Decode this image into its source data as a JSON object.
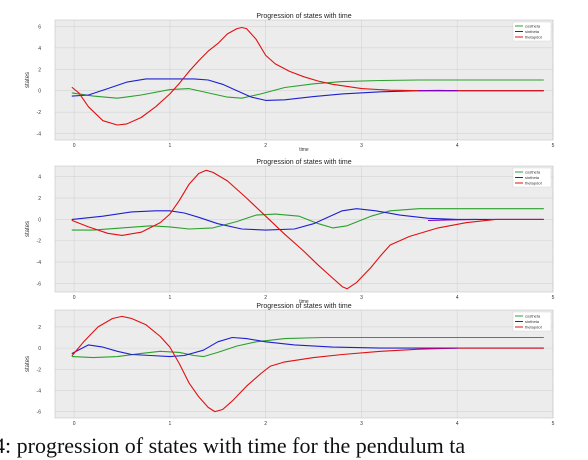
{
  "caption": "4: progression of states with time for the pendulum ta",
  "top_fragment": "time",
  "chart_data": [
    {
      "type": "line",
      "title": "Progression of states with time",
      "xlabel": "time",
      "ylabel": "states",
      "xlim": [
        -0.2,
        5.0
      ],
      "ylim": [
        -4.6,
        6.6
      ],
      "xticks": [
        0,
        1,
        2,
        3,
        4,
        5
      ],
      "yticks": [
        -4,
        -2,
        0,
        2,
        4,
        6
      ],
      "legend_position": "top-right",
      "legend": [
        "costheta",
        "sintheta",
        "thetapdot"
      ],
      "grid": true,
      "series": [
        {
          "color": "#2ca02c",
          "points": [
            [
              -0.02,
              -0.2
            ],
            [
              0.2,
              -0.5
            ],
            [
              0.45,
              -0.7
            ],
            [
              0.7,
              -0.4
            ],
            [
              1.0,
              0.1
            ],
            [
              1.2,
              0.2
            ],
            [
              1.4,
              -0.2
            ],
            [
              1.6,
              -0.6
            ],
            [
              1.75,
              -0.7
            ],
            [
              1.95,
              -0.3
            ],
            [
              2.2,
              0.3
            ],
            [
              2.5,
              0.65
            ],
            [
              2.8,
              0.85
            ],
            [
              3.2,
              0.95
            ],
            [
              3.6,
              1.0
            ],
            [
              4.2,
              1.0
            ],
            [
              4.9,
              1.0
            ]
          ]
        },
        {
          "color": "#1f1fd0",
          "points": [
            [
              -0.02,
              -0.5
            ],
            [
              0.15,
              -0.4
            ],
            [
              0.35,
              0.2
            ],
            [
              0.55,
              0.8
            ],
            [
              0.75,
              1.1
            ],
            [
              1.0,
              1.1
            ],
            [
              1.25,
              1.1
            ],
            [
              1.4,
              1.0
            ],
            [
              1.55,
              0.6
            ],
            [
              1.7,
              0.0
            ],
            [
              1.85,
              -0.6
            ],
            [
              2.0,
              -0.9
            ],
            [
              2.2,
              -0.85
            ],
            [
              2.5,
              -0.55
            ],
            [
              2.8,
              -0.3
            ],
            [
              3.2,
              -0.1
            ],
            [
              3.6,
              0.0
            ],
            [
              4.9,
              0.0
            ]
          ]
        },
        {
          "color": "#e01010",
          "points": [
            [
              -0.02,
              0.3
            ],
            [
              0.05,
              -0.2
            ],
            [
              0.15,
              -1.5
            ],
            [
              0.3,
              -2.8
            ],
            [
              0.45,
              -3.2
            ],
            [
              0.55,
              -3.1
            ],
            [
              0.7,
              -2.5
            ],
            [
              0.85,
              -1.5
            ],
            [
              1.0,
              -0.3
            ],
            [
              1.1,
              0.7
            ],
            [
              1.2,
              1.8
            ],
            [
              1.3,
              2.8
            ],
            [
              1.4,
              3.7
            ],
            [
              1.5,
              4.4
            ],
            [
              1.6,
              5.3
            ],
            [
              1.7,
              5.8
            ],
            [
              1.75,
              5.9
            ],
            [
              1.8,
              5.8
            ],
            [
              1.9,
              4.8
            ],
            [
              2.0,
              3.3
            ],
            [
              2.1,
              2.5
            ],
            [
              2.25,
              1.8
            ],
            [
              2.4,
              1.3
            ],
            [
              2.55,
              0.9
            ],
            [
              2.7,
              0.6
            ],
            [
              2.85,
              0.4
            ],
            [
              3.0,
              0.2
            ],
            [
              3.3,
              0.05
            ],
            [
              3.6,
              0.0
            ],
            [
              4.9,
              0.0
            ]
          ]
        },
        {
          "color": "#8000c0",
          "points": [
            [
              3.6,
              0.0
            ],
            [
              3.8,
              0.03
            ],
            [
              4.0,
              0.0
            ]
          ]
        }
      ]
    },
    {
      "type": "line",
      "title": "Progression of states with time",
      "xlabel": "time",
      "ylabel": "states",
      "xlim": [
        -0.2,
        5.0
      ],
      "ylim": [
        -6.8,
        5.0
      ],
      "xticks": [
        0,
        1,
        2,
        3,
        4,
        5
      ],
      "yticks": [
        -6,
        -4,
        -2,
        0,
        2,
        4
      ],
      "legend_position": "top-right",
      "legend": [
        "costheta",
        "sintheta",
        "thetapdot"
      ],
      "grid": true,
      "series": [
        {
          "color": "#2ca02c",
          "points": [
            [
              -0.02,
              -1.0
            ],
            [
              0.2,
              -1.0
            ],
            [
              0.5,
              -0.8
            ],
            [
              0.8,
              -0.6
            ],
            [
              1.0,
              -0.7
            ],
            [
              1.2,
              -0.9
            ],
            [
              1.45,
              -0.8
            ],
            [
              1.7,
              -0.2
            ],
            [
              1.9,
              0.4
            ],
            [
              2.1,
              0.5
            ],
            [
              2.35,
              0.3
            ],
            [
              2.55,
              -0.4
            ],
            [
              2.7,
              -0.8
            ],
            [
              2.85,
              -0.6
            ],
            [
              3.1,
              0.3
            ],
            [
              3.3,
              0.8
            ],
            [
              3.6,
              1.0
            ],
            [
              4.2,
              1.0
            ],
            [
              4.9,
              1.0
            ]
          ]
        },
        {
          "color": "#1f1fd0",
          "points": [
            [
              -0.02,
              0.0
            ],
            [
              0.3,
              0.3
            ],
            [
              0.6,
              0.7
            ],
            [
              0.85,
              0.8
            ],
            [
              1.0,
              0.8
            ],
            [
              1.15,
              0.6
            ],
            [
              1.3,
              0.2
            ],
            [
              1.5,
              -0.4
            ],
            [
              1.75,
              -0.9
            ],
            [
              2.0,
              -1.0
            ],
            [
              2.3,
              -0.9
            ],
            [
              2.5,
              -0.4
            ],
            [
              2.65,
              0.2
            ],
            [
              2.8,
              0.8
            ],
            [
              2.95,
              1.0
            ],
            [
              3.15,
              0.8
            ],
            [
              3.4,
              0.4
            ],
            [
              3.7,
              0.1
            ],
            [
              4.0,
              0.0
            ],
            [
              4.9,
              0.0
            ]
          ]
        },
        {
          "color": "#e01010",
          "points": [
            [
              -0.02,
              -0.1
            ],
            [
              0.15,
              -0.7
            ],
            [
              0.35,
              -1.3
            ],
            [
              0.5,
              -1.5
            ],
            [
              0.7,
              -1.2
            ],
            [
              0.9,
              -0.3
            ],
            [
              1.0,
              0.5
            ],
            [
              1.1,
              1.8
            ],
            [
              1.2,
              3.3
            ],
            [
              1.3,
              4.3
            ],
            [
              1.38,
              4.6
            ],
            [
              1.45,
              4.4
            ],
            [
              1.6,
              3.6
            ],
            [
              1.8,
              2.0
            ],
            [
              2.0,
              0.3
            ],
            [
              2.2,
              -1.4
            ],
            [
              2.4,
              -3.0
            ],
            [
              2.55,
              -4.3
            ],
            [
              2.7,
              -5.5
            ],
            [
              2.8,
              -6.3
            ],
            [
              2.85,
              -6.5
            ],
            [
              2.95,
              -5.9
            ],
            [
              3.1,
              -4.5
            ],
            [
              3.2,
              -3.4
            ],
            [
              3.3,
              -2.4
            ],
            [
              3.5,
              -1.6
            ],
            [
              3.8,
              -0.8
            ],
            [
              4.1,
              -0.3
            ],
            [
              4.4,
              0.0
            ],
            [
              4.9,
              0.0
            ]
          ]
        },
        {
          "color": "#8000c0",
          "points": [
            [
              3.7,
              -0.1
            ],
            [
              3.9,
              -0.05
            ],
            [
              4.2,
              0.0
            ]
          ]
        }
      ]
    },
    {
      "type": "line",
      "title": "Progression of states with time",
      "xlabel": "",
      "ylabel": "states",
      "xlim": [
        -0.2,
        5.0
      ],
      "ylim": [
        -6.6,
        3.6
      ],
      "xticks": [
        0,
        1,
        2,
        3,
        4,
        5
      ],
      "yticks": [
        -6,
        -4,
        -2,
        0,
        2
      ],
      "legend_position": "top-right",
      "legend": [
        "costheta",
        "sintheta",
        "thetapdot"
      ],
      "grid": true,
      "series": [
        {
          "color": "#2ca02c",
          "points": [
            [
              -0.02,
              -0.8
            ],
            [
              0.2,
              -0.9
            ],
            [
              0.45,
              -0.8
            ],
            [
              0.7,
              -0.5
            ],
            [
              0.9,
              -0.3
            ],
            [
              1.1,
              -0.4
            ],
            [
              1.25,
              -0.7
            ],
            [
              1.35,
              -0.8
            ],
            [
              1.5,
              -0.4
            ],
            [
              1.7,
              0.2
            ],
            [
              1.9,
              0.6
            ],
            [
              2.2,
              0.9
            ],
            [
              2.6,
              1.0
            ],
            [
              3.2,
              1.0
            ],
            [
              4.9,
              1.0
            ]
          ]
        },
        {
          "color": "#1f1fd0",
          "points": [
            [
              -0.02,
              -0.5
            ],
            [
              0.15,
              0.3
            ],
            [
              0.3,
              0.1
            ],
            [
              0.45,
              -0.3
            ],
            [
              0.6,
              -0.6
            ],
            [
              0.8,
              -0.7
            ],
            [
              1.0,
              -0.8
            ],
            [
              1.15,
              -0.7
            ],
            [
              1.35,
              -0.2
            ],
            [
              1.5,
              0.6
            ],
            [
              1.65,
              1.0
            ],
            [
              1.8,
              0.9
            ],
            [
              2.0,
              0.6
            ],
            [
              2.3,
              0.3
            ],
            [
              2.7,
              0.1
            ],
            [
              3.2,
              0.0
            ],
            [
              4.9,
              0.0
            ]
          ]
        },
        {
          "color": "#e01010",
          "points": [
            [
              -0.02,
              -0.7
            ],
            [
              0.1,
              0.6
            ],
            [
              0.25,
              2.0
            ],
            [
              0.4,
              2.8
            ],
            [
              0.5,
              3.0
            ],
            [
              0.6,
              2.8
            ],
            [
              0.75,
              2.2
            ],
            [
              0.9,
              1.1
            ],
            [
              1.0,
              0.1
            ],
            [
              1.1,
              -1.5
            ],
            [
              1.2,
              -3.3
            ],
            [
              1.3,
              -4.6
            ],
            [
              1.4,
              -5.6
            ],
            [
              1.47,
              -6.0
            ],
            [
              1.55,
              -5.8
            ],
            [
              1.65,
              -5.0
            ],
            [
              1.8,
              -3.6
            ],
            [
              1.95,
              -2.4
            ],
            [
              2.05,
              -1.7
            ],
            [
              2.2,
              -1.3
            ],
            [
              2.5,
              -0.9
            ],
            [
              2.8,
              -0.6
            ],
            [
              3.2,
              -0.3
            ],
            [
              3.6,
              -0.1
            ],
            [
              4.0,
              0.0
            ],
            [
              4.9,
              0.0
            ]
          ]
        },
        {
          "color": "#8000c0",
          "points": [
            [
              3.6,
              0.0
            ],
            [
              3.8,
              0.0
            ],
            [
              4.0,
              0.0
            ]
          ]
        }
      ]
    }
  ]
}
